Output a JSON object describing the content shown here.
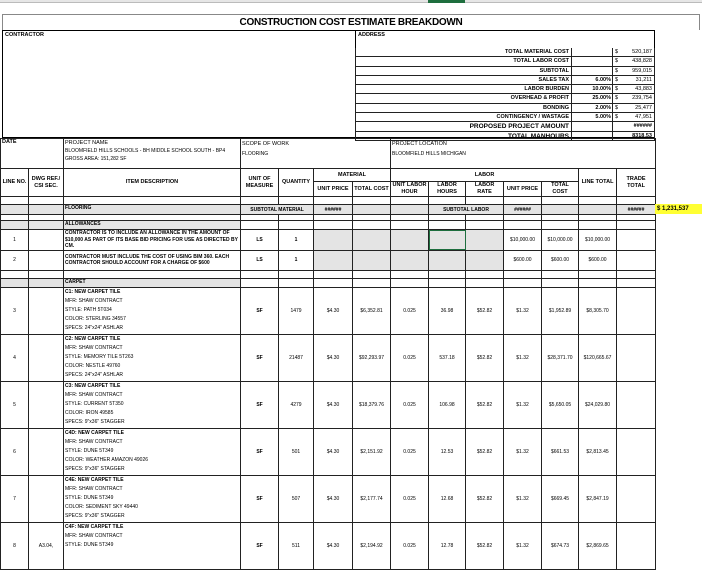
{
  "title": "CONSTRUCTION COST ESTIMATE BREAKDOWN",
  "contractor_label": "CONTRACTOR",
  "address_label": "ADDRESS",
  "summary": [
    {
      "label": "TOTAL MATERIAL COST",
      "pct": "",
      "value": "520,187"
    },
    {
      "label": "TOTAL LABOR COST",
      "pct": "",
      "value": "438,828"
    },
    {
      "label": "SUBTOTAL",
      "pct": "",
      "value": "959,015"
    },
    {
      "label": "SALES TAX",
      "pct": "6.00%",
      "value": "31,211"
    },
    {
      "label": "LABOR BURDEN",
      "pct": "10.00%",
      "value": "43,883"
    },
    {
      "label": "OVERHEAD & PROFIT",
      "pct": "25.00%",
      "value": "239,754"
    },
    {
      "label": "BONDING",
      "pct": "2.00%",
      "value": "25,477"
    },
    {
      "label": "CONTINGENCY / WASTAGE",
      "pct": "5.00%",
      "value": "47,951"
    }
  ],
  "currency": "$",
  "proposed_label": "PROPOSED PROJECT AMOUNT",
  "proposed_value": "######",
  "manhours_label": "TOTAL MANHOURS",
  "manhours_value": "8318.53",
  "info": {
    "date_label": "DATE",
    "project_name_label": "PROJECT NAME",
    "project_name": "BLOOMFIELD HILLS SCHOOLS - BH MIDDLE SCHOOL SOUTH - BP4",
    "gross_area": "GROSS AREA: 151,282 SF",
    "scope_label": "SCOPE OF WORK",
    "scope": "FLOORING",
    "location_label": "PROJECT LOCATION",
    "location": "BLOOMFIELD HILLS MICHIGAN"
  },
  "headers": {
    "line_no": "LINE NO.",
    "dwg": "DWG REF./ CSI SEC.",
    "desc": "ITEM DESCRIPTION",
    "uom": "UNIT OF MEASURE",
    "qty": "QUANTITY",
    "material": "MATERIAL",
    "m_unit_price": "UNIT PRICE",
    "m_total": "TOTAL COST",
    "labor": "LABOR",
    "unit_labor_hour": "UNIT LABOR HOUR",
    "labor_hours": "LABOR HOURS",
    "labor_rate": "LABOR RATE",
    "l_unit_price": "UNIT PRICE",
    "l_total": "TOTAL COST",
    "line_total": "LINE TOTAL",
    "trade_total": "TRADE TOTAL"
  },
  "flooring": {
    "label": "FLOORING",
    "subtotal_material_label": "SUBTOTAL MATERIAL",
    "subtotal_material": "######",
    "subtotal_labor_label": "SUBTOTAL LABOR",
    "subtotal_labor": "######",
    "trade_total": "######",
    "grand_total": "$ 1,231,537"
  },
  "allowances": {
    "label": "ALLOWANCES",
    "rows": [
      {
        "no": "1",
        "desc": [
          "CONTRACTOR IS TO INCLUDE AN ALLOWANCE IN THE AMOUNT OF",
          "$10,000 AS PART OF ITS BASE BID PRICING FOR USE AS DIRECTED BY",
          "CM."
        ],
        "uom": "LS",
        "qty": "1",
        "l_unit_price": "$10,000.00",
        "l_total": "$10,000.00",
        "line_total": "$10,000.00"
      },
      {
        "no": "2",
        "desc": [
          "CONTRACTOR MUST INCLUDE THE COST OF USING BIM 360. EACH",
          "CONTRACTOR SHOULD ACCOUNT FOR A CHARGE OF $600"
        ],
        "uom": "LS",
        "qty": "1",
        "l_unit_price": "$600.00",
        "l_total": "$600.00",
        "line_total": "$600.00"
      }
    ]
  },
  "carpet": {
    "label": "CARPET",
    "rows": [
      {
        "no": "3",
        "dwg": "",
        "desc": [
          "C1: NEW CARPET TILE",
          "MFR: SHAW CONTRACT",
          "STYLE: PATH 5T034",
          "COLOR: STERLING 34557",
          "SPECS: 24\"x24\" ASHLAR"
        ],
        "uom": "SF",
        "qty": "1479",
        "m_unit": "$4.30",
        "m_total": "$6,352.81",
        "ulh": "0.025",
        "hours": "36.98",
        "rate": "$52.82",
        "l_unit": "$1.32",
        "l_total": "$1,952.89",
        "line_total": "$8,305.70"
      },
      {
        "no": "4",
        "dwg": "",
        "desc": [
          "C2: NEW CARPET TILE",
          "MFR: SHAW CONTRACT",
          "STYLE: MEMORY TILE 5T263",
          "COLOR: NESTLE 49760",
          "SPECS: 24\"x24\" ASHLAR"
        ],
        "uom": "SF",
        "qty": "21487",
        "m_unit": "$4.30",
        "m_total": "$92,293.97",
        "ulh": "0.025",
        "hours": "537.18",
        "rate": "$52.82",
        "l_unit": "$1.32",
        "l_total": "$28,371.70",
        "line_total": "$120,665.67"
      },
      {
        "no": "5",
        "dwg": "",
        "desc": [
          "C3: NEW CARPET TILE",
          "MFR: SHAW CONTRACT",
          "STYLE: CURRENT 5T350",
          "COLOR: IRON 49585",
          "SPECS: 9\"x36\" STAGGER"
        ],
        "uom": "SF",
        "qty": "4279",
        "m_unit": "$4.30",
        "m_total": "$18,379.76",
        "ulh": "0.025",
        "hours": "106.98",
        "rate": "$52.82",
        "l_unit": "$1.32",
        "l_total": "$5,650.05",
        "line_total": "$24,029.80"
      },
      {
        "no": "6",
        "dwg": "",
        "desc": [
          "C4D: NEW CARPET TILE",
          "MFR: SHAW CONTRACT",
          "STYLE: DUNE 5T349",
          "COLOR: WEATHER AMAZON 49026",
          "SPECS: 9\"x36\" STAGGER"
        ],
        "uom": "SF",
        "qty": "501",
        "m_unit": "$4.30",
        "m_total": "$2,151.92",
        "ulh": "0.025",
        "hours": "12.53",
        "rate": "$52.82",
        "l_unit": "$1.32",
        "l_total": "$661.53",
        "line_total": "$2,813.45"
      },
      {
        "no": "7",
        "dwg": "",
        "desc": [
          "C4E: NEW CARPET TILE",
          "MFR: SHAW CONTRACT",
          "STYLE: DUNE 5T349",
          "COLOR: SEDIMENT SKY 49440",
          "SPECS: 9\"x36\" STAGGER"
        ],
        "uom": "SF",
        "qty": "507",
        "m_unit": "$4.30",
        "m_total": "$2,177.74",
        "ulh": "0.025",
        "hours": "12.68",
        "rate": "$52.82",
        "l_unit": "$1.32",
        "l_total": "$669.45",
        "line_total": "$2,847.19"
      },
      {
        "no": "8",
        "dwg": "A3.04,",
        "desc": [
          "C4F: NEW CARPET TILE",
          "MFR: SHAW CONTRACT",
          "STYLE: DUNE 5T349"
        ],
        "uom": "SF",
        "qty": "511",
        "m_unit": "$4.30",
        "m_total": "$2,194.92",
        "ulh": "0.025",
        "hours": "12.78",
        "rate": "$52.82",
        "l_unit": "$1.32",
        "l_total": "$674.73",
        "line_total": "$2,869.65"
      }
    ]
  },
  "colors": {
    "selection": "#1e6e3e",
    "highlight": "#ffff33",
    "subtotal_fill": "#e4e4e4"
  }
}
